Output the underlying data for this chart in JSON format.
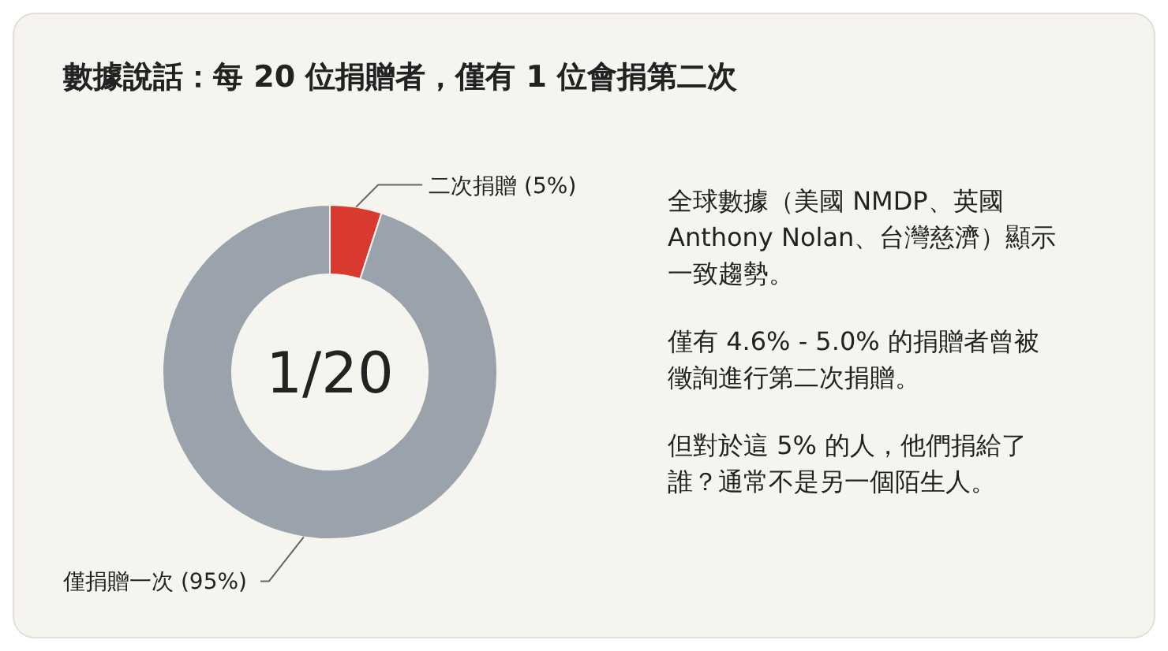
{
  "chart_data": {
    "type": "donut",
    "title": "數據說話：每 20 位捐贈者，僅有 1 位會捐第二次",
    "categories": [
      "二次捐贈",
      "僅捐贈一次"
    ],
    "values": [
      5,
      95
    ],
    "value_labels": [
      "(5%)",
      "(95%)"
    ],
    "colors": [
      "#d93a2f",
      "#9aa3ab"
    ],
    "annotations": [
      "1/20",
      "全球數據（美國 NMDP、英國 Anthony Nolan、台灣慈濟）顯示一致趨勢。",
      "僅有 4.6% - 5.0% 的捐贈者曾被徵詢進行第二次捐贈。",
      "但對於這 5% 的人，他們捐給了誰？通常不是另一個陌生人。"
    ]
  }
}
